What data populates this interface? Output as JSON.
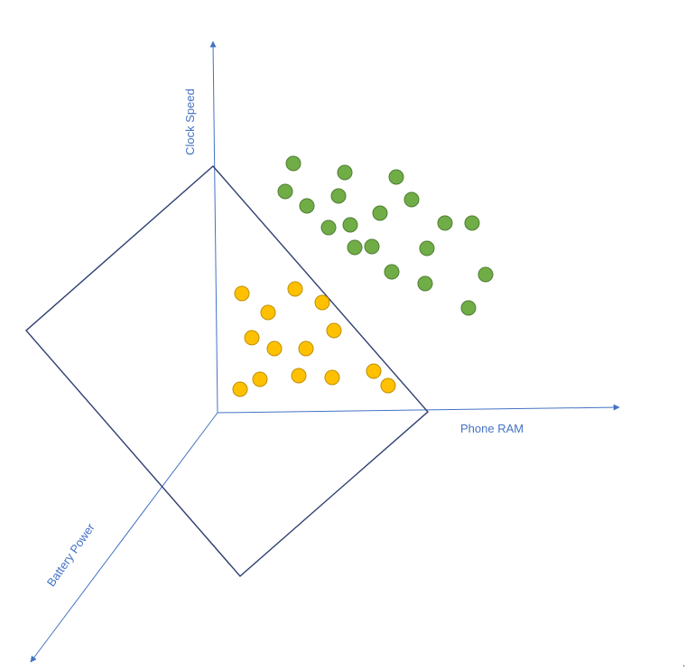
{
  "axes": {
    "clock_speed": "Clock Speed",
    "phone_ram": "Phone RAM",
    "battery_power": "Battery Power"
  },
  "colors": {
    "axis": "#4472C4",
    "plane": "#2F3F73",
    "class_a_fill": "#70AD47",
    "class_a_stroke": "#507E32",
    "class_b_fill": "#FFC000",
    "class_b_stroke": "#BF9000"
  },
  "marker": "."
}
